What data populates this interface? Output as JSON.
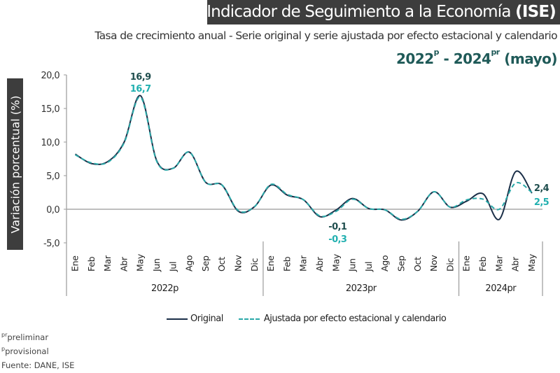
{
  "header": {
    "title_main": "Indicador de Seguimiento a la Economía ",
    "title_bold": "(ISE)",
    "subtitle": "Tasa de crecimiento anual - Serie original y serie ajustada por efecto estacional y calendario",
    "period_start": "2022",
    "period_start_sup": "p",
    "period_sep": " - ",
    "period_end": "2024",
    "period_end_sup": "pr",
    "period_suffix": " (mayo)"
  },
  "footnotes": {
    "pr_sup": "pr",
    "pr_text": "preliminar",
    "p_sup": "p",
    "p_text": "provisional",
    "source": "Fuente: DANE, ISE"
  },
  "colors": {
    "original": "#1b2f48",
    "adjusted": "#2aa8a8",
    "original_label": "#1f4e4e",
    "adjusted_label": "#22b0b0",
    "header_bg": "#3d3d3d",
    "period_text": "#1f5a58"
  },
  "chart_data": {
    "type": "line",
    "title": "Indicador de Seguimiento a la Economía (ISE)",
    "subtitle": "Tasa de crecimiento anual - Serie original y serie ajustada por efecto estacional y calendario",
    "ylabel": "Variación porcentual (%)",
    "xlabel": "",
    "ylim": [
      -5,
      20
    ],
    "yticks": [
      -5,
      0,
      5,
      10,
      15,
      20
    ],
    "ytick_labels": [
      "-5,0",
      "0,0",
      "5,0",
      "10,0",
      "15,0",
      "20,0"
    ],
    "grid": false,
    "legend_position": "bottom",
    "categories": [
      "Ene",
      "Feb",
      "Mar",
      "Abr",
      "May",
      "Jun",
      "Jul",
      "Ago",
      "Sep",
      "Oct",
      "Nov",
      "Dic",
      "Ene",
      "Feb",
      "Mar",
      "Abr",
      "May",
      "Jun",
      "Jul",
      "Ago",
      "Sep",
      "Oct",
      "Nov",
      "Dic",
      "Ene",
      "Feb",
      "Mar",
      "Abr",
      "May"
    ],
    "year_groups": [
      {
        "label": "2022p",
        "count": 12
      },
      {
        "label": "2023pr",
        "count": 12
      },
      {
        "label": "2024pr",
        "count": 5
      }
    ],
    "series": [
      {
        "name": "Original",
        "style": "solid",
        "values": [
          8.2,
          6.8,
          7.1,
          10.0,
          16.9,
          7.2,
          6.1,
          8.5,
          4.0,
          3.6,
          -0.3,
          0.4,
          3.6,
          2.1,
          1.4,
          -1.1,
          -0.1,
          1.6,
          0.1,
          -0.1,
          -1.6,
          -0.3,
          2.6,
          0.3,
          1.2,
          2.3,
          -1.5,
          5.6,
          2.4
        ]
      },
      {
        "name": "Ajustada por efecto estacional y calendario",
        "style": "dashed",
        "values": [
          8.1,
          6.9,
          7.0,
          9.9,
          16.7,
          7.1,
          6.1,
          8.5,
          4.0,
          3.6,
          -0.2,
          0.4,
          3.7,
          2.2,
          1.4,
          -1.0,
          -0.3,
          1.5,
          0.1,
          -0.1,
          -1.5,
          -0.3,
          2.6,
          0.3,
          1.4,
          1.5,
          0.0,
          3.9,
          2.5
        ]
      }
    ],
    "annotations": [
      {
        "series": "Original",
        "index": 4,
        "text": "16,9"
      },
      {
        "series": "Ajustada por efecto estacional y calendario",
        "index": 4,
        "text": "16,7"
      },
      {
        "series": "Original",
        "index": 16,
        "text": "-0,1"
      },
      {
        "series": "Ajustada por efecto estacional y calendario",
        "index": 16,
        "text": "-0,3"
      },
      {
        "series": "Original",
        "index": 28,
        "text": "2,4"
      },
      {
        "series": "Ajustada por efecto estacional y calendario",
        "index": 28,
        "text": "2,5"
      }
    ]
  }
}
